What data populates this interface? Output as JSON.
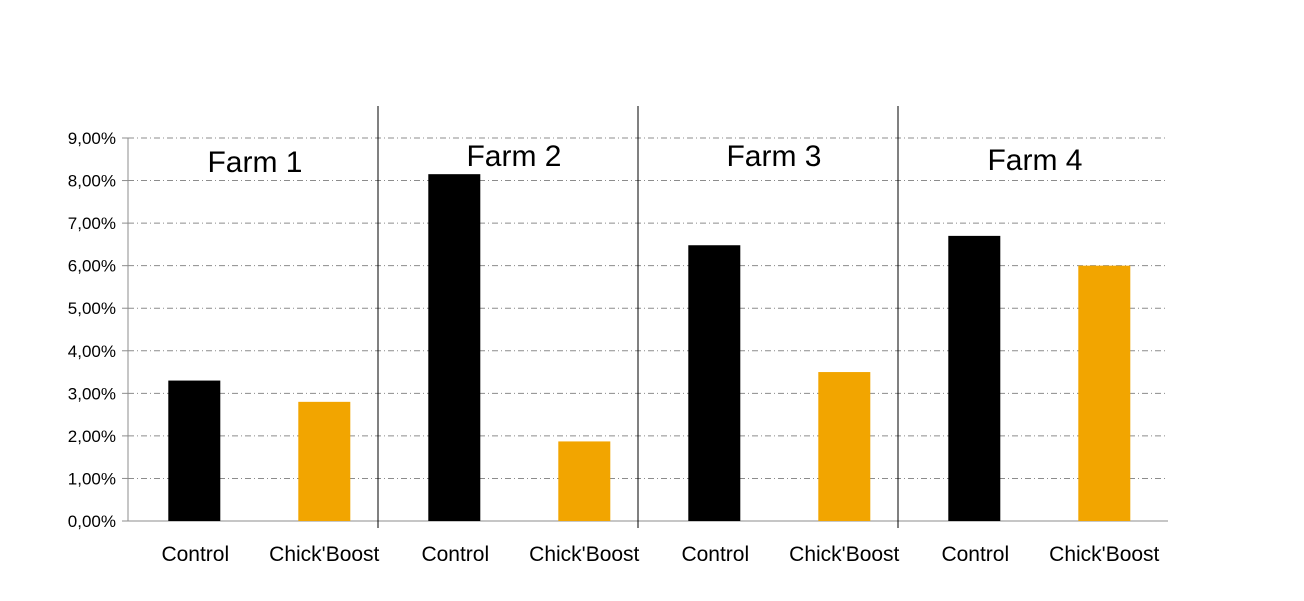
{
  "chart_data": {
    "type": "bar",
    "title": "",
    "xlabel": "",
    "ylabel": "",
    "ylim": [
      0,
      0.09
    ],
    "yticks": [
      "0,00%",
      "1,00%",
      "2,00%",
      "3,00%",
      "4,00%",
      "5,00%",
      "6,00%",
      "7,00%",
      "8,00%",
      "9,00%"
    ],
    "grid": true,
    "groups": [
      {
        "name": "Farm 1",
        "bars": [
          {
            "label": "Control",
            "value": 0.033,
            "color": "#000000"
          },
          {
            "label": "Chick'Boost",
            "value": 0.028,
            "color": "#F2A500"
          }
        ]
      },
      {
        "name": "Farm 2",
        "bars": [
          {
            "label": "Control",
            "value": 0.0815,
            "color": "#000000"
          },
          {
            "label": "Chick'Boost",
            "value": 0.0187,
            "color": "#F2A500"
          }
        ]
      },
      {
        "name": "Farm 3",
        "bars": [
          {
            "label": "Control",
            "value": 0.0648,
            "color": "#000000"
          },
          {
            "label": "Chick'Boost",
            "value": 0.035,
            "color": "#F2A500"
          }
        ]
      },
      {
        "name": "Farm 4",
        "bars": [
          {
            "label": "Control",
            "value": 0.067,
            "color": "#000000"
          },
          {
            "label": "Chick'Boost",
            "value": 0.06,
            "color": "#F2A500"
          }
        ]
      }
    ]
  }
}
